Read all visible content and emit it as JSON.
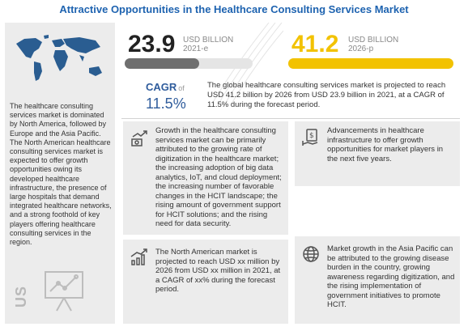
{
  "header": {
    "title": "Attractive Opportunities in the Healthcare Consulting Services Market"
  },
  "left_panel": {
    "description": "The healthcare consulting services market is dominated by North America, followed by Europe and the Asia Pacific. The North American healthcare consulting services market is expected to offer growth opportunities owing its developed healthcare infrastructure, the presence of large hospitals that demand integrated healthcare networks, and a strong foothold of key players offering healthcare consulting services in the region.",
    "region_label": "US",
    "map_icon": "world-map-icon",
    "chart_icon": "presentation-chart-icon"
  },
  "stats": {
    "current": {
      "value": "23.9",
      "unit": "USD BILLION",
      "year": "2021-e",
      "fill_fraction": 0.58,
      "color": "#6f6f6f"
    },
    "projected": {
      "value": "41.2",
      "unit": "USD BILLION",
      "year": "2026-p",
      "fill_fraction": 1.0,
      "color": "#f2c200"
    }
  },
  "cagr": {
    "label": "CAGR",
    "of": "of",
    "value": "11.5%",
    "description": "The global healthcare consulting services market is projected to reach USD 41.2 billion by 2026 from USD 23.9 billion in 2021, at a CAGR of 11.5% during the forecast period."
  },
  "insights": [
    {
      "icon": "money-growth-icon",
      "text": "Growth in the healthcare consulting services market can be primarily attributed to the growing rate of digitization in the healthcare market; the increasing adoption of big data analytics, IoT, and cloud deployment; the increasing number of favorable changes in the HCIT landscape; the rising amount of government support for HCIT solutions; and the rising need for data security."
    },
    {
      "icon": "money-hand-icon",
      "text": "Advancements in healthcare infrastructure to offer growth opportunities for market players in the next five years."
    },
    {
      "icon": "bar-chart-growth-icon",
      "text": "The North American market is projected to reach USD xx million by 2026 from USD xx million in 2021, at a CAGR of xx% during the forecast period."
    },
    {
      "icon": "globe-icon",
      "text": "Market growth in the Asia Pacific can be attributed to the growing disease burden in the country, growing awareness regarding digitization, and the rising implementation of government initiatives to promote HCIT."
    }
  ]
}
